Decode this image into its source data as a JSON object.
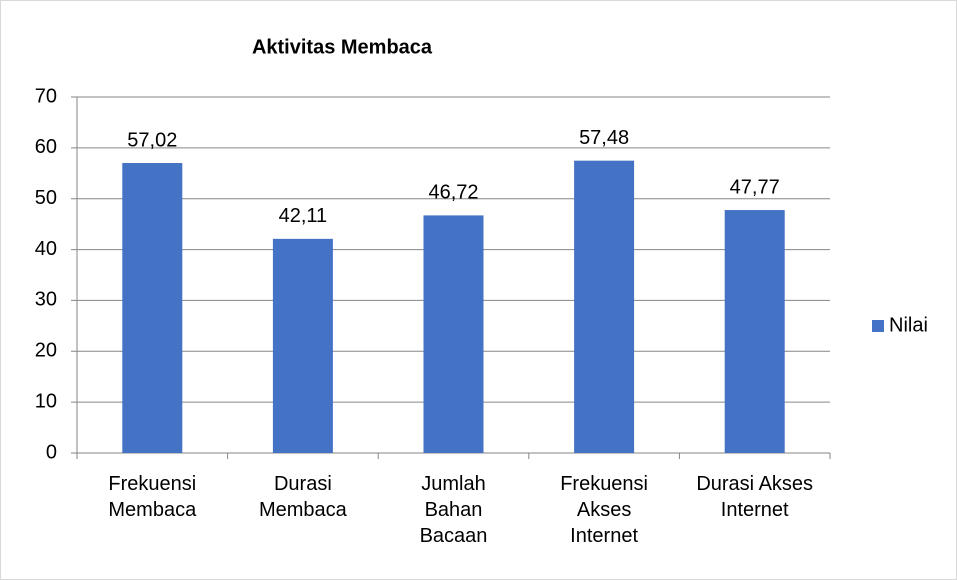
{
  "chart_data": {
    "type": "bar",
    "title": "Aktivitas Membaca",
    "categories": [
      "Frekuensi Membaca",
      "Durasi Membaca",
      "Jumlah Bahan Bacaan",
      "Frekuensi Akses Internet",
      "Durasi Akses Internet"
    ],
    "series": [
      {
        "name": "Nilai",
        "color": "#4472c4",
        "values": [
          57.02,
          42.11,
          46.72,
          57.48,
          47.77
        ],
        "value_labels": [
          "57,02",
          "42,11",
          "46,72",
          "57,48",
          "47,77"
        ]
      }
    ],
    "ylim": [
      0,
      70
    ],
    "yticks": [
      0,
      10,
      20,
      30,
      40,
      50,
      60,
      70
    ],
    "grid": true,
    "legend": "right"
  }
}
